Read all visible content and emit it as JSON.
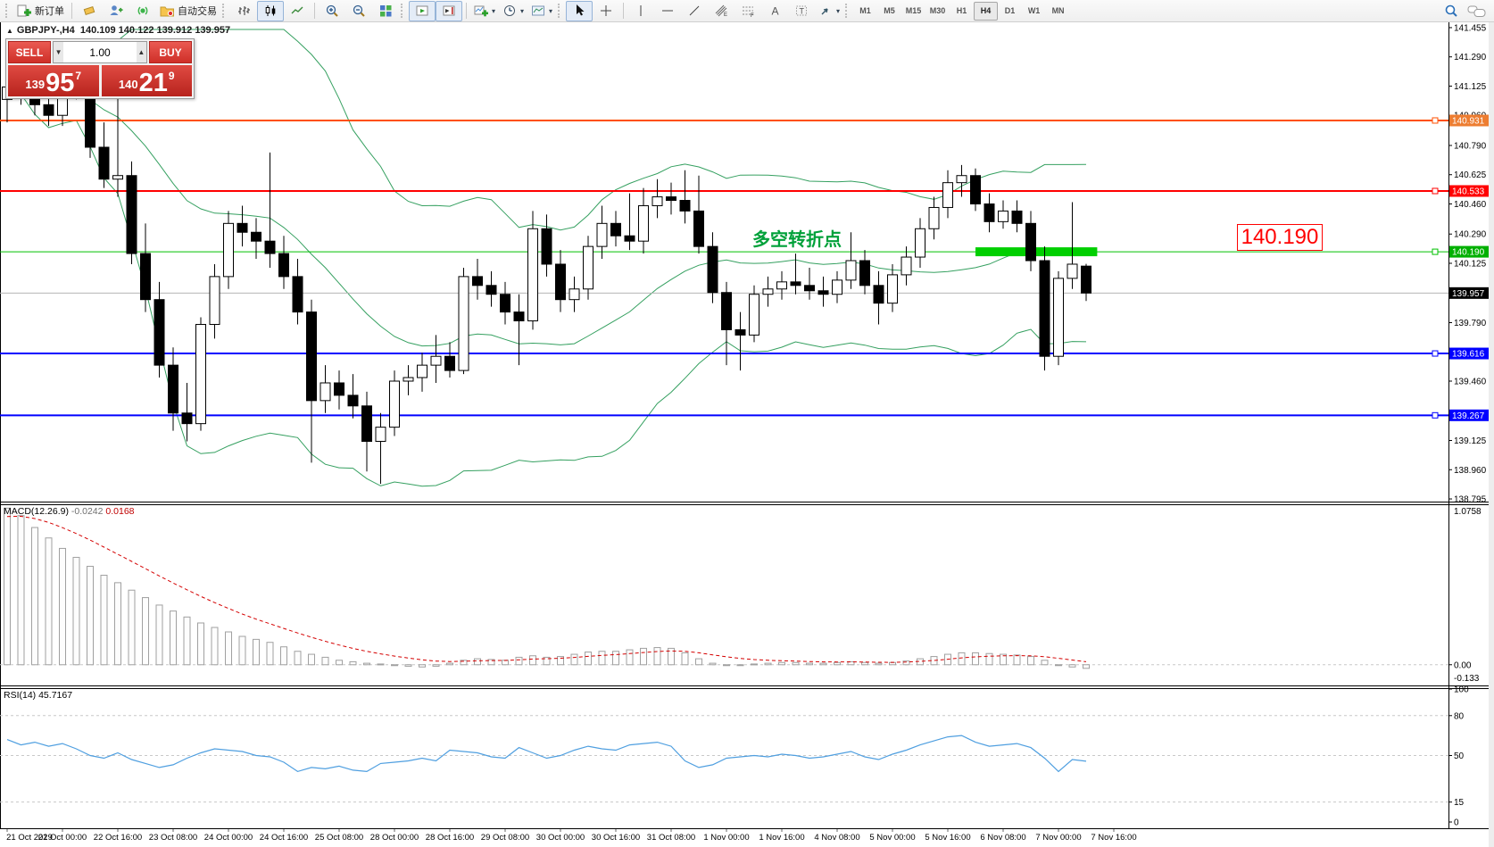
{
  "toolbar": {
    "new_order_label": "新订单",
    "autotrading_label": "自动交易",
    "timeframes": [
      "M1",
      "M5",
      "M15",
      "M30",
      "H1",
      "H4",
      "D1",
      "W1",
      "MN"
    ],
    "active_timeframe": "H4",
    "icon_names": [
      "new-order-icon",
      "eraser-icon",
      "profiles-icon",
      "signals-icon",
      "autotrading-folder-icon",
      "bar-chart-icon",
      "candlestick-chart-icon",
      "line-chart-icon",
      "zoom-in-icon",
      "zoom-out-icon",
      "tile-windows-icon",
      "auto-scroll-icon",
      "chart-shift-icon",
      "add-indicator-icon",
      "periods-clock-icon",
      "template-icon",
      "cursor-icon",
      "crosshair-icon",
      "vertical-line-icon",
      "horizontal-line-icon",
      "trendline-icon",
      "channel-icon",
      "fibonacci-icon",
      "text-icon",
      "text-label-icon",
      "arrows-icon",
      "search-icon",
      "chat-icon"
    ]
  },
  "chart_header": {
    "collapse_arrow": "▲",
    "symbol": "GBPJPY-,H4",
    "ohlc": "140.109 140.122 139.912 139.957"
  },
  "trade_panel": {
    "sell_label": "SELL",
    "buy_label": "BUY",
    "volume": "1.00",
    "down_arrow": "▼",
    "up_arrow": "▲",
    "sell_price": {
      "prefix": "139",
      "big": "95",
      "sup": "7"
    },
    "buy_price": {
      "prefix": "140",
      "big": "21",
      "sup": "9"
    }
  },
  "annotation": {
    "text": "多空转折点",
    "color": "#00a13a",
    "price_box_label": "140.190"
  },
  "chart_data": {
    "type": "candlestick",
    "symbol": "GBPJPY",
    "timeframe": "H4",
    "ylim": [
      138.78,
      141.48
    ],
    "price_axis_ticks": [
      "141.455",
      "141.290",
      "141.125",
      "140.960",
      "140.790",
      "140.625",
      "140.460",
      "140.290",
      "140.125",
      "139.790",
      "139.460",
      "139.125",
      "138.960",
      "138.795"
    ],
    "time_labels": [
      "21 Oct 2019",
      "22 Oct 00:00",
      "22 Oct 16:00",
      "23 Oct 08:00",
      "24 Oct 00:00",
      "24 Oct 16:00",
      "25 Oct 08:00",
      "28 Oct 00:00",
      "28 Oct 16:00",
      "29 Oct 08:00",
      "30 Oct 00:00",
      "30 Oct 16:00",
      "31 Oct 08:00",
      "1 Nov 00:00",
      "1 Nov 16:00",
      "4 Nov 08:00",
      "5 Nov 00:00",
      "5 Nov 16:00",
      "6 Nov 08:00",
      "7 Nov 00:00",
      "7 Nov 16:00"
    ],
    "label_every_n_bars": 4,
    "candles": [
      [
        141.05,
        141.25,
        140.92,
        141.12
      ],
      [
        141.12,
        141.3,
        141.02,
        141.2
      ],
      [
        141.2,
        141.26,
        140.96,
        141.02
      ],
      [
        141.02,
        141.14,
        140.9,
        140.96
      ],
      [
        140.96,
        141.22,
        140.9,
        141.15
      ],
      [
        141.15,
        141.32,
        141.05,
        141.1
      ],
      [
        141.1,
        141.15,
        140.72,
        140.78
      ],
      [
        140.78,
        140.92,
        140.55,
        140.6
      ],
      [
        140.6,
        141.3,
        140.5,
        140.62
      ],
      [
        140.62,
        140.7,
        140.12,
        140.18
      ],
      [
        140.18,
        140.35,
        139.85,
        139.92
      ],
      [
        139.92,
        140.02,
        139.48,
        139.55
      ],
      [
        139.55,
        139.65,
        139.18,
        139.28
      ],
      [
        139.28,
        139.45,
        139.12,
        139.22
      ],
      [
        139.22,
        139.82,
        139.18,
        139.78
      ],
      [
        139.78,
        140.12,
        139.7,
        140.05
      ],
      [
        140.05,
        140.42,
        139.98,
        140.35
      ],
      [
        140.35,
        140.45,
        140.22,
        140.3
      ],
      [
        140.3,
        140.38,
        140.15,
        140.25
      ],
      [
        140.25,
        140.75,
        140.1,
        140.18
      ],
      [
        140.18,
        140.28,
        139.98,
        140.05
      ],
      [
        140.05,
        140.15,
        139.78,
        139.85
      ],
      [
        139.85,
        139.92,
        139.0,
        139.35
      ],
      [
        139.35,
        139.55,
        139.28,
        139.45
      ],
      [
        139.45,
        139.52,
        139.3,
        139.38
      ],
      [
        139.38,
        139.5,
        139.25,
        139.32
      ],
      [
        139.32,
        139.4,
        138.95,
        139.12
      ],
      [
        139.12,
        139.28,
        138.88,
        139.2
      ],
      [
        139.2,
        139.52,
        139.15,
        139.46
      ],
      [
        139.46,
        139.55,
        139.38,
        139.48
      ],
      [
        139.48,
        139.62,
        139.4,
        139.55
      ],
      [
        139.55,
        139.72,
        139.45,
        139.6
      ],
      [
        139.6,
        139.68,
        139.48,
        139.52
      ],
      [
        139.52,
        140.1,
        139.5,
        140.05
      ],
      [
        140.05,
        140.15,
        139.92,
        140.0
      ],
      [
        140.0,
        140.08,
        139.88,
        139.95
      ],
      [
        139.95,
        140.02,
        139.78,
        139.85
      ],
      [
        139.85,
        139.95,
        139.55,
        139.8
      ],
      [
        139.8,
        140.42,
        139.75,
        140.32
      ],
      [
        140.32,
        140.4,
        140.05,
        140.12
      ],
      [
        140.12,
        140.2,
        139.85,
        139.92
      ],
      [
        139.92,
        140.05,
        139.85,
        139.98
      ],
      [
        139.98,
        140.28,
        139.92,
        140.22
      ],
      [
        140.22,
        140.45,
        140.15,
        140.35
      ],
      [
        140.35,
        140.42,
        140.22,
        140.28
      ],
      [
        140.28,
        140.52,
        140.2,
        140.25
      ],
      [
        140.25,
        140.55,
        140.18,
        140.45
      ],
      [
        140.45,
        140.6,
        140.38,
        140.5
      ],
      [
        140.5,
        140.58,
        140.4,
        140.48
      ],
      [
        140.48,
        140.65,
        140.35,
        140.42
      ],
      [
        140.42,
        140.62,
        140.18,
        140.22
      ],
      [
        140.22,
        140.3,
        139.9,
        139.96
      ],
      [
        139.96,
        140.02,
        139.55,
        139.75
      ],
      [
        139.75,
        139.85,
        139.52,
        139.72
      ],
      [
        139.72,
        140.0,
        139.68,
        139.95
      ],
      [
        139.95,
        140.05,
        139.88,
        139.98
      ],
      [
        139.98,
        140.08,
        139.92,
        140.02
      ],
      [
        140.02,
        140.18,
        139.95,
        140.0
      ],
      [
        140.0,
        140.1,
        139.92,
        139.97
      ],
      [
        139.97,
        140.05,
        139.88,
        139.95
      ],
      [
        139.95,
        140.08,
        139.9,
        140.03
      ],
      [
        140.03,
        140.3,
        139.98,
        140.14
      ],
      [
        140.14,
        140.2,
        139.95,
        140.0
      ],
      [
        140.0,
        140.08,
        139.78,
        139.9
      ],
      [
        139.9,
        140.12,
        139.85,
        140.06
      ],
      [
        140.06,
        140.22,
        140.0,
        140.16
      ],
      [
        140.16,
        140.38,
        140.1,
        140.32
      ],
      [
        140.32,
        140.5,
        140.26,
        140.44
      ],
      [
        140.44,
        140.65,
        140.38,
        140.58
      ],
      [
        140.58,
        140.68,
        140.5,
        140.62
      ],
      [
        140.62,
        140.66,
        140.42,
        140.46
      ],
      [
        140.46,
        140.52,
        140.3,
        140.36
      ],
      [
        140.36,
        140.48,
        140.32,
        140.42
      ],
      [
        140.42,
        140.48,
        140.3,
        140.35
      ],
      [
        140.35,
        140.42,
        140.08,
        140.14
      ],
      [
        140.14,
        140.22,
        139.52,
        139.6
      ],
      [
        139.6,
        140.08,
        139.55,
        140.04
      ],
      [
        140.04,
        140.47,
        139.98,
        140.12
      ],
      [
        140.109,
        140.122,
        139.912,
        139.957
      ]
    ],
    "hlines": [
      {
        "label": "139.957",
        "price": 139.957,
        "color": "#b4b4b4",
        "label_bg": "#000000",
        "width": 1,
        "layer": "under"
      },
      {
        "label": "140.931",
        "price": 140.931,
        "color": "#ff4f00",
        "label_bg": "#ed7d31",
        "width": 2
      },
      {
        "label": "140.533",
        "price": 140.533,
        "color": "#ff0000",
        "label_bg": "#ff0000",
        "width": 2
      },
      {
        "label": "140.190",
        "price": 140.19,
        "color": "#00c000",
        "label_bg": "#00b000",
        "width": 1
      },
      {
        "label": "139.616",
        "price": 139.616,
        "color": "#0000ff",
        "label_bg": "#0000ff",
        "width": 2
      },
      {
        "label": "139.267",
        "price": 139.267,
        "color": "#0000ff",
        "label_bg": "#0000ff",
        "width": 2
      }
    ],
    "highlight_bar": {
      "price": 140.19,
      "from_bar": 70,
      "to_bar": 78.8,
      "color": "#00cf00",
      "thickness": 10
    },
    "bollinger": {
      "period": 20,
      "deviation": 2,
      "color": "#35a060"
    },
    "macd": {
      "label": "MACD(12.26.9)",
      "value_text": "-0.0242",
      "signal_text": "0.0168",
      "scale_labels": {
        "max": "1.0758",
        "zero": "0.00",
        "min": "-0.133"
      },
      "ylim": [
        -0.133,
        1.0758
      ],
      "signal_period": 9,
      "signal_seed": 0.98,
      "values": [
        1.05,
        1.0,
        0.92,
        0.85,
        0.78,
        0.72,
        0.66,
        0.6,
        0.55,
        0.5,
        0.45,
        0.4,
        0.36,
        0.32,
        0.28,
        0.25,
        0.22,
        0.19,
        0.17,
        0.15,
        0.12,
        0.09,
        0.07,
        0.05,
        0.03,
        0.02,
        0.01,
        0.005,
        0.0,
        -0.01,
        -0.015,
        -0.01,
        0.01,
        0.03,
        0.04,
        0.035,
        0.03,
        0.05,
        0.06,
        0.05,
        0.055,
        0.07,
        0.085,
        0.09,
        0.09,
        0.1,
        0.11,
        0.115,
        0.11,
        0.08,
        0.04,
        0.01,
        0.0,
        0.0,
        0.005,
        0.01,
        0.015,
        0.015,
        0.01,
        0.01,
        0.015,
        0.02,
        0.015,
        0.01,
        0.015,
        0.025,
        0.04,
        0.055,
        0.07,
        0.08,
        0.08,
        0.075,
        0.07,
        0.065,
        0.055,
        0.03,
        0.0,
        -0.015,
        -0.0242
      ]
    },
    "rsi": {
      "label": "RSI(14)",
      "value_text": "45.7167",
      "scale_labels": [
        "100",
        "80",
        "50",
        "15",
        "0"
      ],
      "levels": [
        80,
        50,
        15
      ],
      "ylim": [
        0,
        100
      ],
      "values": [
        62,
        58,
        60,
        57,
        59,
        55,
        50,
        48,
        52,
        47,
        44,
        41,
        43,
        48,
        52,
        55,
        54,
        53,
        50,
        49,
        45,
        38,
        41,
        40,
        42,
        39,
        38,
        44,
        45,
        46,
        48,
        46,
        54,
        53,
        52,
        49,
        48,
        56,
        52,
        48,
        50,
        54,
        57,
        55,
        54,
        58,
        59,
        60,
        57,
        46,
        41,
        43,
        48,
        49,
        50,
        49,
        51,
        50,
        48,
        49,
        51,
        53,
        49,
        47,
        51,
        54,
        58,
        61,
        64,
        65,
        60,
        57,
        58,
        59,
        56,
        48,
        38,
        47,
        45.7
      ]
    }
  }
}
